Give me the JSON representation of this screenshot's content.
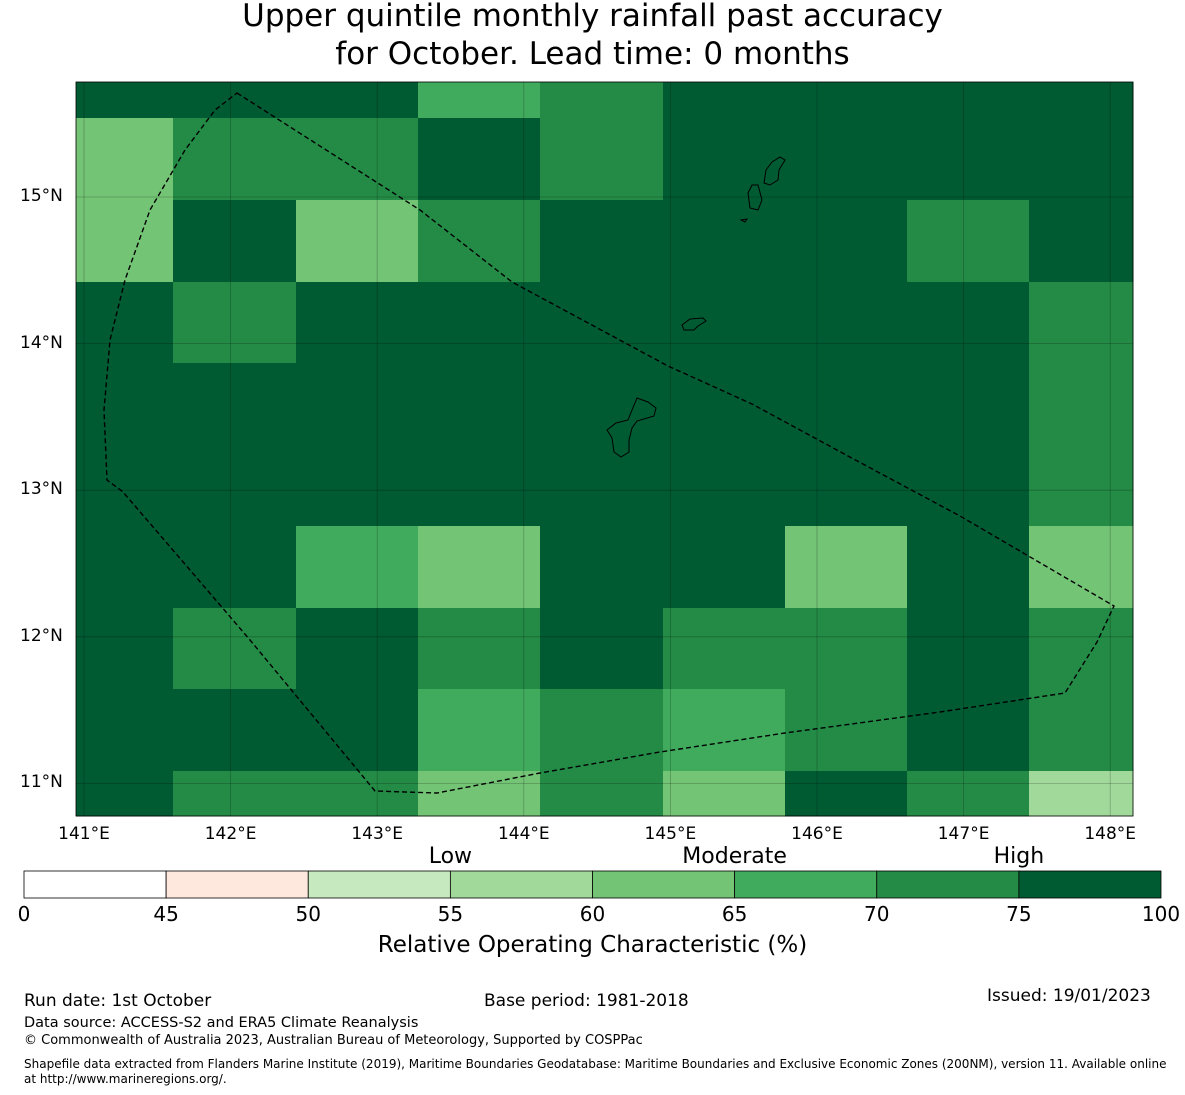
{
  "title": {
    "line1": "Upper quintile monthly rainfall past accuracy",
    "line2": "for October. Lead time: 0 months"
  },
  "map": {
    "lon_ticks": [
      "141°E",
      "142°E",
      "143°E",
      "144°E",
      "145°E",
      "146°E",
      "147°E",
      "148°E"
    ],
    "lat_ticks": [
      "15°N",
      "14°N",
      "13°N",
      "12°N",
      "11°N"
    ],
    "lon_values": [
      141,
      142,
      143,
      144,
      145,
      146,
      147,
      148
    ],
    "lat_values": [
      15,
      14,
      13,
      12,
      11
    ],
    "extent": {
      "lon": [
        141.0,
        148.2
      ],
      "lat": [
        10.8,
        15.8
      ]
    },
    "grid_cells_note": "ROC % by cell, rows north to south, columns west to east",
    "cell_values": [
      [
        80,
        80,
        80,
        68,
        72,
        80,
        80,
        80,
        80
      ],
      [
        63,
        72,
        72,
        80,
        72,
        80,
        80,
        80,
        80
      ],
      [
        63,
        80,
        63,
        72,
        80,
        80,
        80,
        72,
        80
      ],
      [
        80,
        72,
        80,
        80,
        80,
        80,
        80,
        80,
        72
      ],
      [
        80,
        80,
        80,
        80,
        80,
        80,
        80,
        80,
        72
      ],
      [
        80,
        80,
        80,
        80,
        80,
        80,
        80,
        80,
        72
      ],
      [
        80,
        80,
        68,
        63,
        80,
        80,
        63,
        80,
        63
      ],
      [
        80,
        72,
        80,
        72,
        80,
        72,
        72,
        80,
        72
      ],
      [
        80,
        80,
        80,
        68,
        72,
        68,
        72,
        80,
        72
      ],
      [
        80,
        72,
        72,
        63,
        72,
        63,
        80,
        72,
        58
      ]
    ]
  },
  "colorbar": {
    "category_labels": [
      "Low",
      "Moderate",
      "High"
    ],
    "ticks": [
      "0",
      "45",
      "50",
      "55",
      "60",
      "65",
      "70",
      "75",
      "100"
    ],
    "bins": [
      {
        "from": 0,
        "to": 45,
        "color": "#ffffff"
      },
      {
        "from": 45,
        "to": 50,
        "color": "#fee8de"
      },
      {
        "from": 50,
        "to": 55,
        "color": "#c7e9c0"
      },
      {
        "from": 55,
        "to": 60,
        "color": "#a1d99b"
      },
      {
        "from": 60,
        "to": 65,
        "color": "#74c476"
      },
      {
        "from": 65,
        "to": 70,
        "color": "#41ab5d"
      },
      {
        "from": 70,
        "to": 75,
        "color": "#238b45"
      },
      {
        "from": 75,
        "to": 100,
        "color": "#005a32"
      }
    ],
    "title": "Relative Operating Characteristic (%)"
  },
  "footer": {
    "run_date": "Run date: 1st October",
    "base_period": "Base period: 1981-2018",
    "issued": "Issued: 19/01/2023",
    "data_source": "Data source: ACCESS-S2 and ERA5 Climate Reanalysis",
    "copyright": "© Commonwealth of Australia 2023, Australian Bureau of Meteorology, Supported by COSPPac",
    "shapefile_line1": "Shapefile data extracted from Flanders Marine Institute (2019), Maritime Boundaries Geodatabase: Maritime Boundaries and Exclusive Economic Zones (200NM), version 11. Available online",
    "shapefile_line2": "at http://www.marineregions.org/."
  }
}
